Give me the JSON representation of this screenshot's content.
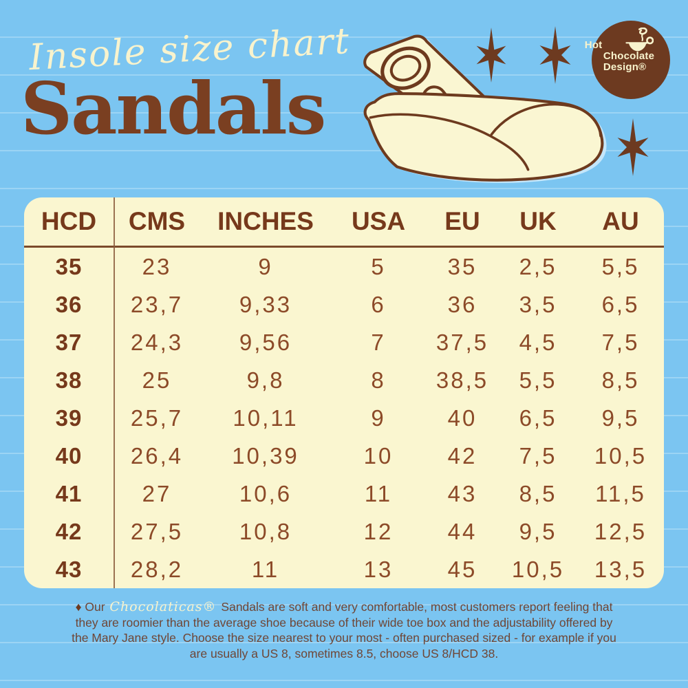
{
  "title": {
    "script": "Insole size chart",
    "main": "Sandals"
  },
  "logo": {
    "line1": "Hot",
    "line2": "Chocolate",
    "line3": "Design®"
  },
  "icons": {
    "sparkle": "six-point-star",
    "cup": "hot-chocolate-cup"
  },
  "table": {
    "headers": [
      "HCD",
      "CMS",
      "INCHES",
      "USA",
      "EU",
      "UK",
      "AU"
    ],
    "rows": [
      [
        "35",
        "23",
        "9",
        "5",
        "35",
        "2,5",
        "5,5"
      ],
      [
        "36",
        "23,7",
        "9,33",
        "6",
        "36",
        "3,5",
        "6,5"
      ],
      [
        "37",
        "24,3",
        "9,56",
        "7",
        "37,5",
        "4,5",
        "7,5"
      ],
      [
        "38",
        "25",
        "9,8",
        "8",
        "38,5",
        "5,5",
        "8,5"
      ],
      [
        "39",
        "25,7",
        "10,11",
        "9",
        "40",
        "6,5",
        "9,5"
      ],
      [
        "40",
        "26,4",
        "10,39",
        "10",
        "42",
        "7,5",
        "10,5"
      ],
      [
        "41",
        "27",
        "10,6",
        "11",
        "43",
        "8,5",
        "11,5"
      ],
      [
        "42",
        "27,5",
        "10,8",
        "12",
        "44",
        "9,5",
        "12,5"
      ],
      [
        "43",
        "28,2",
        "11",
        "13",
        "45",
        "10,5",
        "13,5"
      ]
    ]
  },
  "footer": {
    "diamond": "♦",
    "lead": " Our ",
    "brand": "Chocolaticas®",
    "rest": " Sandals are soft and very comfortable, most customers report feeling that they are roomier than the average shoe because of their wide toe box and the adjustability offered by the Mary Jane style. Choose the size nearest to your most - often  purchased sized - for example if you are usually a US 8, sometimes 8.5, choose US 8/HCD 38."
  },
  "colors": {
    "background_blue": "#7bc5f1",
    "stripe_blue": "#9ad3f5",
    "cream": "#faf6d0",
    "dark_brown": "#76391b",
    "data_brown": "#8c4a28",
    "footer_brown": "#6f4636"
  }
}
